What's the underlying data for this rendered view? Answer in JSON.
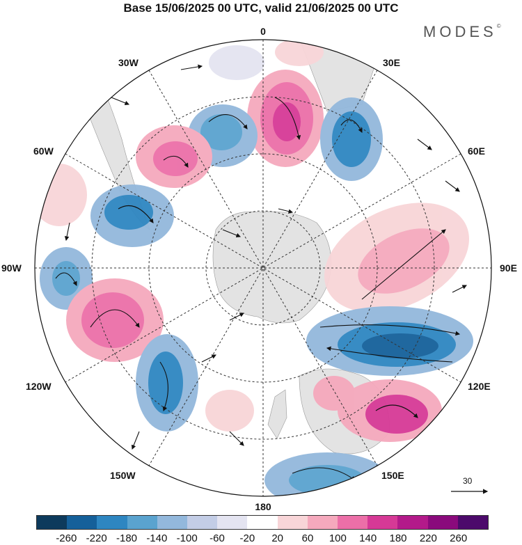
{
  "title": "Base 15/06/2025 00 UTC, valid 21/06/2025 00 UTC",
  "logo": "MODES",
  "logo_mark": "©",
  "map": {
    "projection": "south polar stereographic",
    "longitude_labels": {
      "top": "0",
      "bottom": "180",
      "left": "90W",
      "right": "90E",
      "upper_left_1": "30W",
      "upper_left_2": "60W",
      "upper_right_1": "30E",
      "upper_right_2": "60E",
      "lower_left_1": "120W",
      "lower_left_2": "150W",
      "lower_right_1": "120E",
      "lower_right_2": "150E"
    },
    "reference_vector": {
      "label": "30"
    }
  },
  "legend": {
    "labels": [
      "-260",
      "-220",
      "-180",
      "-140",
      "-100",
      "-60",
      "-20",
      "20",
      "60",
      "100",
      "140",
      "180",
      "220",
      "260"
    ],
    "colors": [
      "#0d3a5c",
      "#15609a",
      "#2e86c1",
      "#5aa3cf",
      "#93b8dc",
      "#c3cde6",
      "#e4e4f1",
      "#ffffff",
      "#f8d5d8",
      "#f5a9bd",
      "#ec6fa8",
      "#d63996",
      "#b31a8a",
      "#8a0a7c",
      "#4c0a6b"
    ]
  },
  "colors": {
    "land": "#e3e3e3",
    "grid": "#333333"
  }
}
